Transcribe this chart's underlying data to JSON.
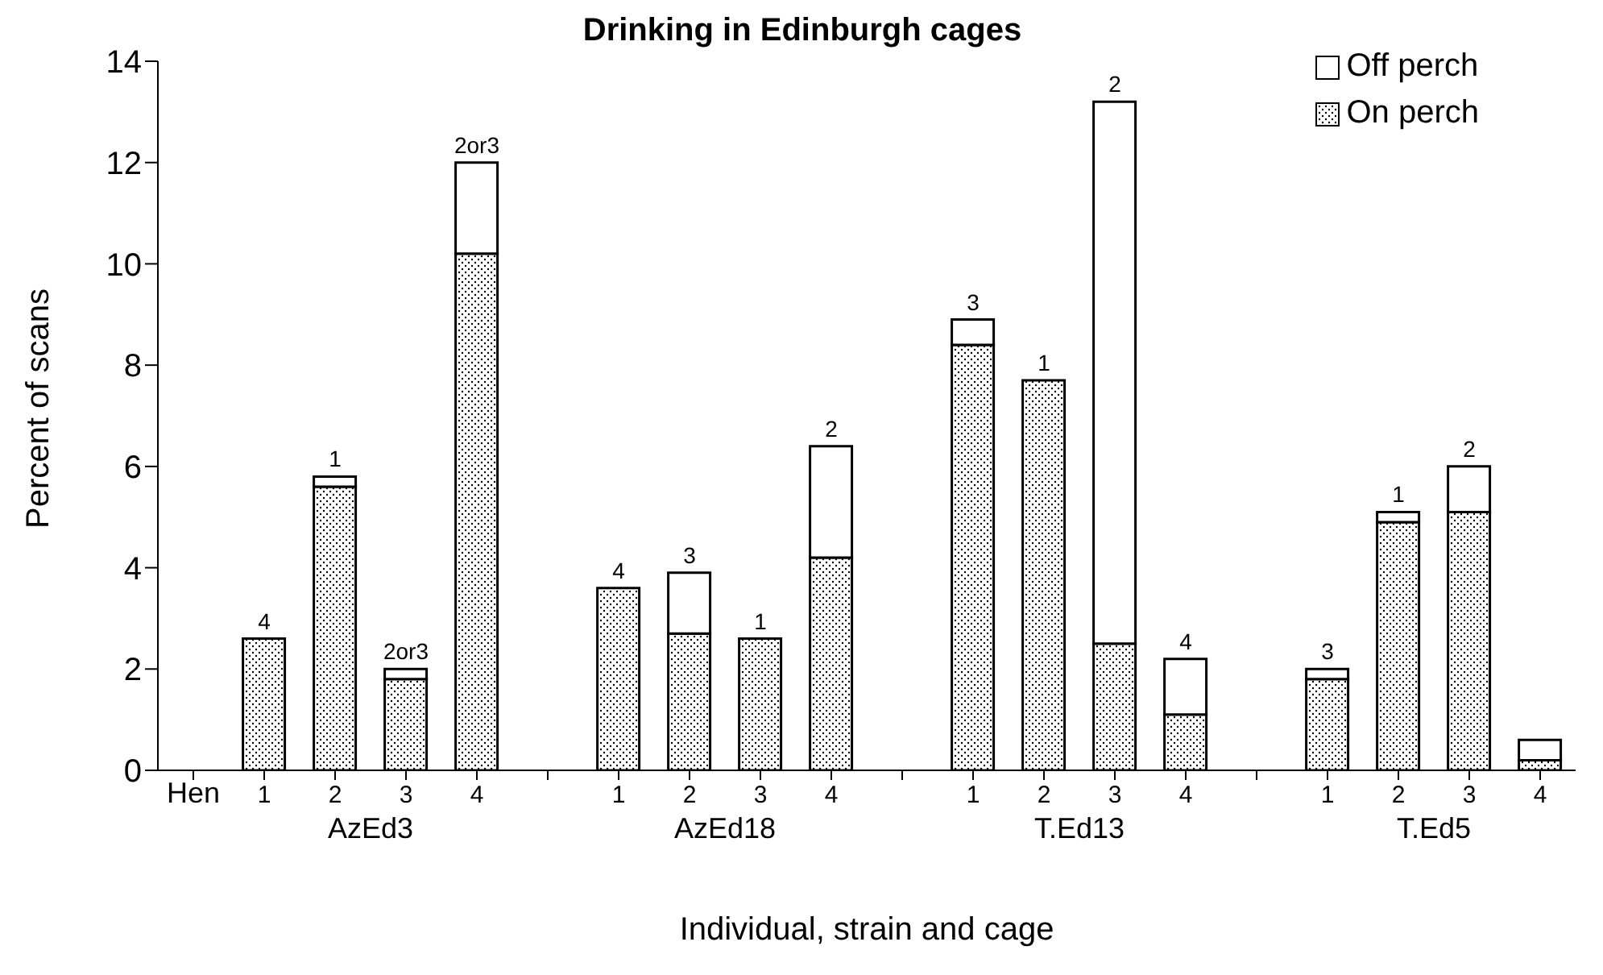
{
  "chart_data": {
    "type": "bar",
    "title": "Drinking in Edinburgh cages",
    "xlabel": "Individual, strain and cage",
    "ylabel": "Percent of scans",
    "categories": [
      "Hen",
      "1",
      "2",
      "3",
      "4",
      null,
      "1",
      "2",
      "3",
      "4",
      null,
      "1",
      "2",
      "3",
      "4",
      null,
      "1",
      "2",
      "3",
      "4"
    ],
    "series": [
      {
        "name": "On perch",
        "color": "#000000",
        "values": [
          null,
          2.6,
          5.6,
          1.8,
          10.2,
          null,
          3.6,
          2.7,
          2.6,
          4.2,
          null,
          8.4,
          7.7,
          2.5,
          1.1,
          null,
          1.8,
          4.9,
          5.1,
          0.2
        ]
      },
      {
        "name": "Off perch",
        "color": "#ffffff",
        "values": [
          null,
          0,
          0.2,
          0.2,
          1.8,
          null,
          0,
          1.2,
          0,
          2.2,
          null,
          0.5,
          0,
          10.7,
          1.1,
          null,
          0.2,
          0.2,
          0.9,
          0.4
        ]
      }
    ],
    "stacked": true,
    "ylim": [
      0,
      14
    ],
    "yticks": [
      0,
      2,
      4,
      6,
      8,
      10,
      12,
      14
    ],
    "grid": false,
    "legend": "top right",
    "annotations": [
      "AzEd3",
      "AzEd18",
      "T.Ed13",
      "T.Ed5",
      "4",
      "1",
      "2or3",
      "2or3",
      "4",
      "3",
      "1",
      "2",
      "3",
      "1",
      "2",
      "4",
      "3",
      "1",
      "2"
    ]
  }
}
